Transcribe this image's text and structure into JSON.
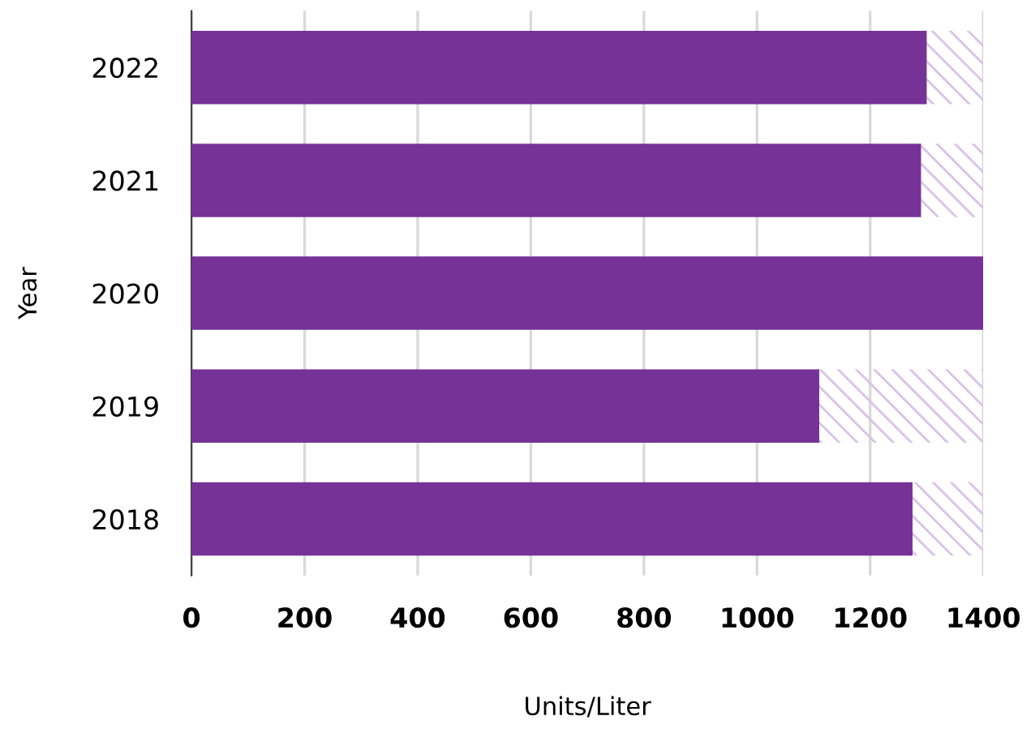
{
  "chart_data": {
    "type": "bar",
    "orientation": "horizontal",
    "xlabel": "Units/Liter",
    "ylabel": "Year",
    "categories": [
      "2022",
      "2021",
      "2020",
      "2019",
      "2018"
    ],
    "series": [
      {
        "color": "#763297",
        "values": [
          1300,
          1290,
          1400,
          1110,
          1275
        ]
      },
      {
        "color": "#d9c2e6",
        "values": [
          100,
          110,
          0,
          290,
          125
        ]
      }
    ],
    "stacked": true,
    "xlim": [
      0,
      1400
    ],
    "xticks": [
      0,
      200,
      400,
      600,
      800,
      1000,
      1200,
      1400
    ],
    "grid": "x",
    "legend": false
  }
}
